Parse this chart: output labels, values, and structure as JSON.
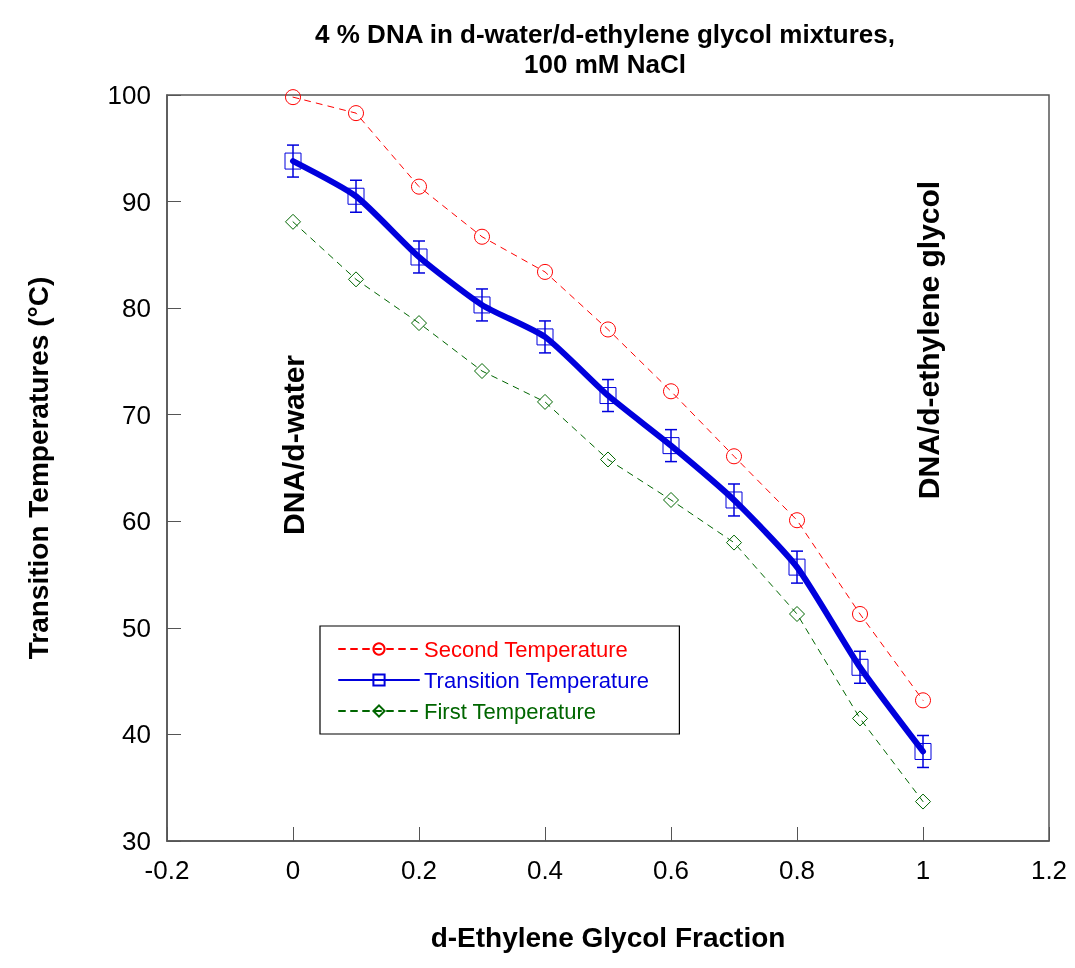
{
  "chart_data": {
    "type": "line",
    "title": "4 % DNA in d-water/d-ethylene glycol mixtures,\n100 mM NaCl",
    "xlabel": "d-Ethylene Glycol Fraction",
    "ylabel": "Transition Temperatures (°C)",
    "x": [
      0,
      0.1,
      0.2,
      0.3,
      0.4,
      0.5,
      0.6,
      0.7,
      0.8,
      0.9,
      1
    ],
    "series": [
      {
        "name": "Second Temperature",
        "color": "#ff0000",
        "marker": "circle",
        "line_style": "dashed",
        "values": [
          99.8,
          98.3,
          91.4,
          86.7,
          83.4,
          78.0,
          72.2,
          66.1,
          60.1,
          51.3,
          43.2
        ]
      },
      {
        "name": "Transition Temperature",
        "color": "#0000dd",
        "marker": "square",
        "line_style": "solid",
        "values": [
          93.8,
          90.5,
          84.8,
          80.3,
          77.3,
          71.8,
          67.1,
          62.0,
          55.7,
          46.3,
          38.4
        ],
        "errors": [
          1.5,
          1.5,
          1.5,
          1.5,
          1.5,
          1.5,
          1.5,
          1.5,
          1.5,
          1.5,
          1.5
        ]
      },
      {
        "name": "First Temperature",
        "color": "#006600",
        "marker": "diamond",
        "line_style": "dashed",
        "values": [
          88.1,
          82.7,
          78.6,
          74.1,
          71.2,
          65.8,
          62.0,
          58.0,
          51.3,
          41.5,
          33.7
        ]
      }
    ],
    "xlim": [
      -0.2,
      1.2
    ],
    "xticks": [
      -0.2,
      0,
      0.2,
      0.4,
      0.6,
      0.8,
      1,
      1.2
    ],
    "ylim": [
      30,
      100
    ],
    "yticks": [
      30,
      40,
      50,
      60,
      70,
      80,
      90,
      100
    ],
    "grid": false,
    "legend": "bottom left",
    "annotations": [
      "DNA/d-water",
      "DNA/d-ethylene glycol"
    ]
  }
}
